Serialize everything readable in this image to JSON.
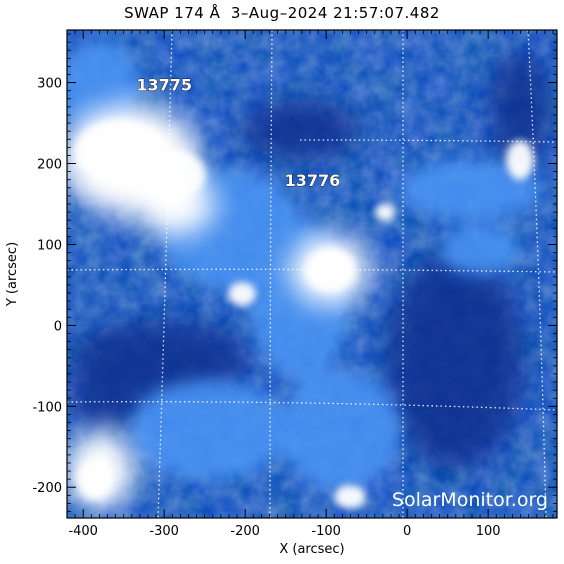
{
  "title": "SWAP 174 Å  3–Aug–2024 21:57:07.482",
  "x_axis": {
    "label": "X (arcsec)",
    "ticks": [
      "-400",
      "-300",
      "-200",
      "-100",
      "0",
      "100"
    ],
    "tick_values": [
      -400,
      -300,
      -200,
      -100,
      0,
      100
    ],
    "range": [
      -420,
      185
    ]
  },
  "y_axis": {
    "label": "Y (arcsec)",
    "ticks": [
      "-200",
      "-100",
      "0",
      "100",
      "200",
      "300"
    ],
    "tick_values": [
      -200,
      -100,
      0,
      100,
      200,
      300
    ],
    "range": [
      -238,
      365
    ]
  },
  "regions": [
    {
      "id": "13775",
      "label": "13775",
      "x": -300,
      "y": 290
    },
    {
      "id": "13776",
      "label": "13776",
      "x": -117,
      "y": 172
    }
  ],
  "watermark": "SolarMonitor.org",
  "colors": {
    "image_base": "#0a3fb0",
    "image_bright": "#ffffff",
    "image_mid": "#3b86f0",
    "grid": "#ffffff"
  }
}
